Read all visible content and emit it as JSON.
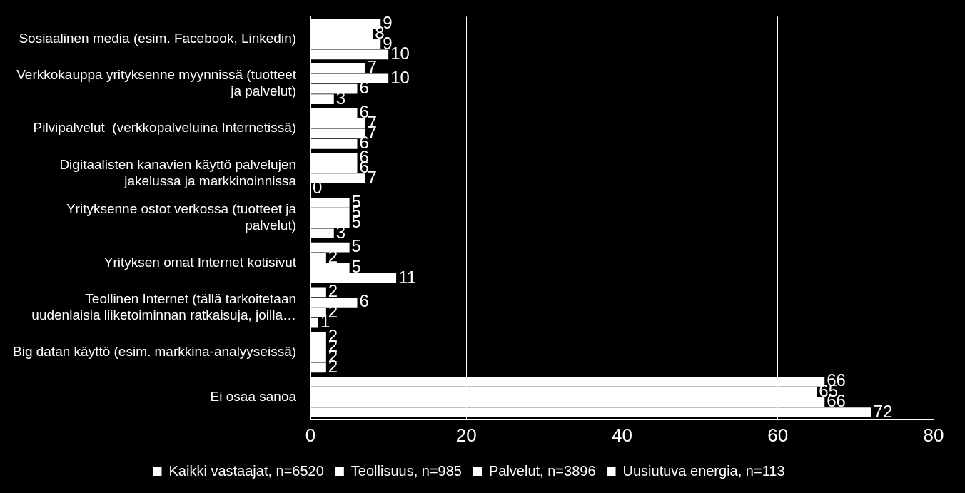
{
  "chart_data": {
    "type": "bar",
    "orientation": "horizontal",
    "categories": [
      "Sosiaalinen media (esim. Facebook, Linkedin)",
      "Verkkokauppa yrityksenne myynnissä (tuotteet ja palvelut)",
      "Pilvipalvelut  (verkkopalveluina Internetissä)",
      "Digitaalisten kanavien käyttö palvelujen jakelussa ja markkinoinnissa",
      "Yrityksenne ostot verkossa (tuotteet ja palvelut)",
      "Yrityksen omat Internet kotisivut",
      "Teollinen Internet (tällä tarkoitetaan uudenlaisia liiketoiminnan ratkaisuja, joilla…",
      "Big datan käyttö (esim. markkina-analyyseissä)",
      "Ei osaa sanoa"
    ],
    "series": [
      {
        "name": "Kaikki vastaajat, n=6520",
        "color": "#ffffff",
        "values": [
          9,
          7,
          6,
          6,
          5,
          5,
          2,
          2,
          66
        ]
      },
      {
        "name": "Teollisuus, n=985",
        "color": "#ffffff",
        "values": [
          8,
          10,
          7,
          6,
          5,
          2,
          6,
          2,
          65
        ]
      },
      {
        "name": "Palvelut, n=3896",
        "color": "#ffffff",
        "values": [
          9,
          6,
          7,
          7,
          5,
          5,
          2,
          2,
          66
        ]
      },
      {
        "name": "Uusiutuva energia, n=113",
        "color": "#ffffff",
        "values": [
          10,
          3,
          6,
          0,
          3,
          11,
          1,
          2,
          72
        ]
      }
    ],
    "xlim": [
      0,
      80
    ],
    "xticks": [
      0,
      20,
      40,
      60,
      80
    ],
    "grid": true,
    "legend": "bottom",
    "data_labels": true
  }
}
